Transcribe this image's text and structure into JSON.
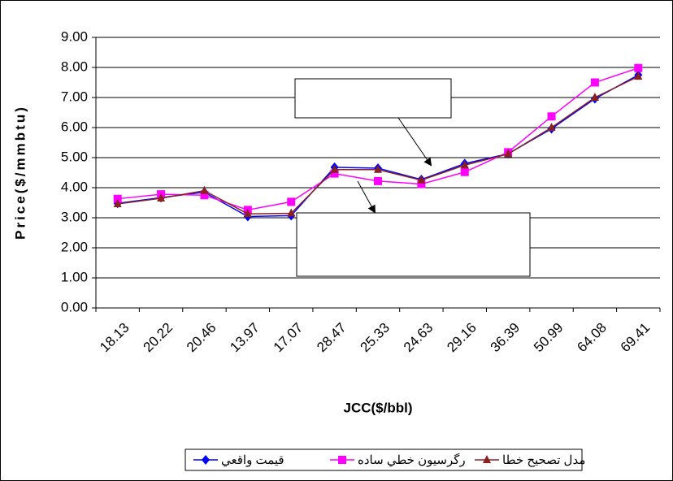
{
  "chart_data": {
    "type": "line",
    "x_label": "JCC($/bbl)",
    "y_label": "Price($/mmbtu)",
    "categories": [
      "18.13",
      "20.22",
      "20.46",
      "13.97",
      "17.07",
      "28.47",
      "25.33",
      "24.63",
      "29.16",
      "36.39",
      "50.99",
      "64.08",
      "69.41"
    ],
    "series": [
      {
        "name": "قيمت واقعي",
        "color": "#0000ff",
        "marker": "diamond",
        "values": [
          3.48,
          3.67,
          3.85,
          3.04,
          3.07,
          4.68,
          4.65,
          4.27,
          4.8,
          5.13,
          5.96,
          6.96,
          7.75
        ]
      },
      {
        "name": "رگرسيون خطي ساده",
        "color": "#ff00ff",
        "marker": "square",
        "values": [
          3.63,
          3.78,
          3.75,
          3.26,
          3.53,
          4.47,
          4.22,
          4.12,
          4.52,
          5.18,
          6.37,
          7.5,
          7.98
        ]
      },
      {
        "name": "مدل تصحيح خطا",
        "color": "#8b2020",
        "marker": "triangle",
        "values": [
          3.46,
          3.65,
          3.9,
          3.13,
          3.15,
          4.6,
          4.6,
          4.25,
          4.75,
          5.12,
          6.0,
          7.0,
          7.7
        ]
      }
    ],
    "ylim": [
      0,
      9
    ],
    "yticks": [
      {
        "value": 0,
        "label": "0.00"
      },
      {
        "value": 1,
        "label": "1.00"
      },
      {
        "value": 2,
        "label": "2.00"
      },
      {
        "value": 3,
        "label": "3.00"
      },
      {
        "value": 4,
        "label": "4.00"
      },
      {
        "value": 5,
        "label": "5.00"
      },
      {
        "value": 6,
        "label": "6.00"
      },
      {
        "value": 7,
        "label": "7.00"
      },
      {
        "value": 8,
        "label": "8.00"
      },
      {
        "value": 9,
        "label": "9.00"
      }
    ],
    "grid": true,
    "legend": "bottom"
  }
}
